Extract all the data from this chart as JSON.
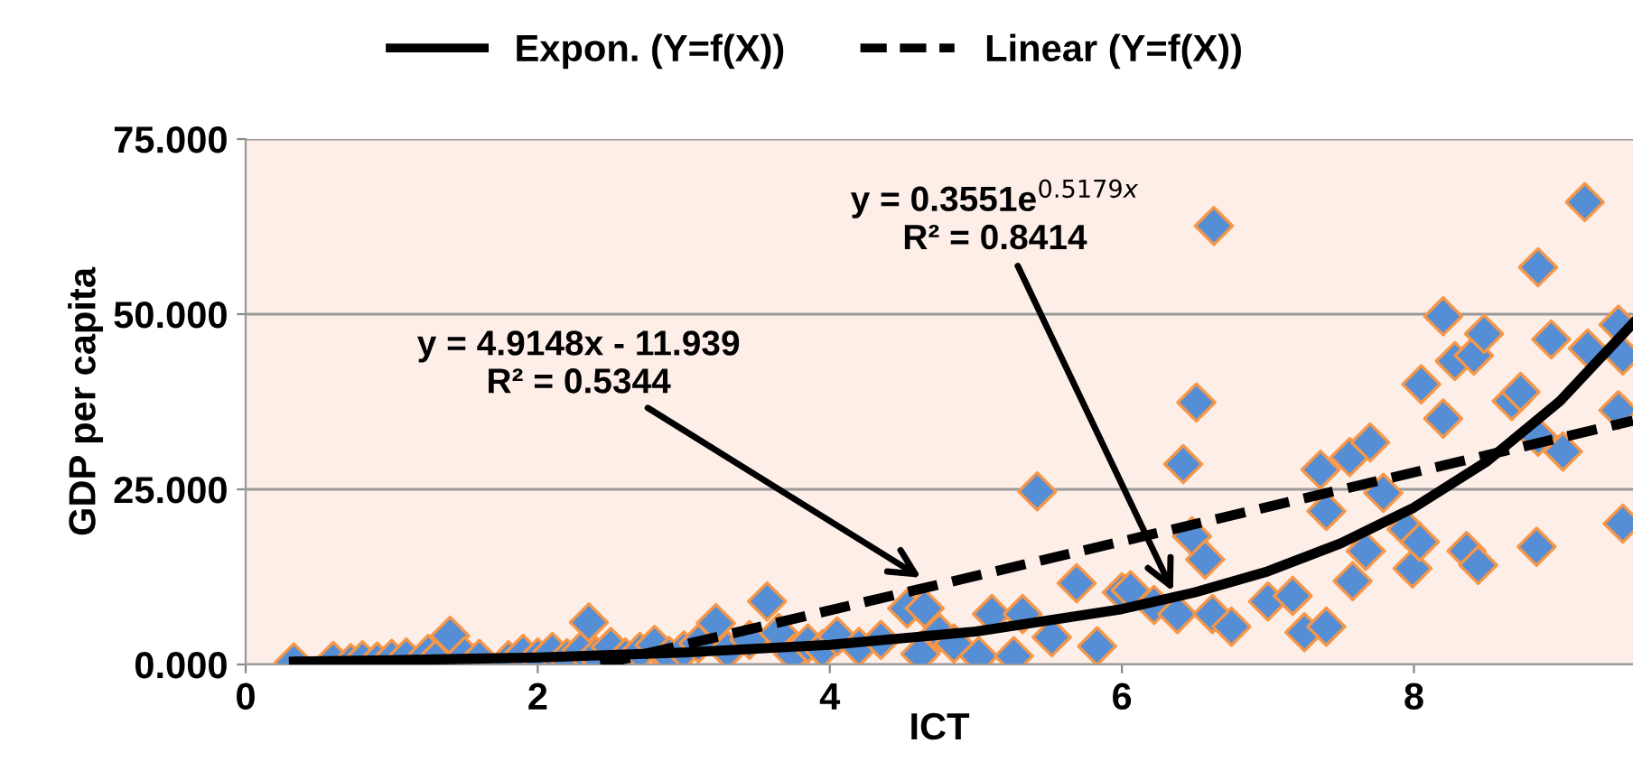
{
  "chart_data": {
    "type": "scatter",
    "xlabel": "ICT",
    "ylabel": "GDP per capita",
    "xlim": [
      0,
      9.5
    ],
    "ylim": [
      0,
      75
    ],
    "xticks": [
      0,
      2,
      4,
      6,
      8
    ],
    "yticks": [
      {
        "value": 0,
        "label": "0.000"
      },
      {
        "value": 25,
        "label": "25.000"
      },
      {
        "value": 50,
        "label": "50.000"
      },
      {
        "value": 75,
        "label": "75.000"
      }
    ],
    "grid": "y",
    "legend": "top",
    "marker": "diamond",
    "annotations": [
      "y = 4.9148x - 11.939\nR² = 0.5344",
      "y = 0.3551e$^{0.5179x}$\nR² = 0.8414"
    ],
    "series": [
      {
        "color": "#558ed5",
        "x": [
          0.33,
          0.6,
          0.72,
          0.8,
          0.9,
          1.0,
          1.1,
          1.25,
          1.3,
          1.4,
          1.5,
          1.6,
          1.8,
          1.9,
          2.0,
          2.1,
          2.2,
          2.3,
          2.35,
          2.4,
          2.5,
          2.6,
          2.7,
          2.8,
          2.9,
          3.0,
          3.1,
          3.22,
          3.3,
          3.45,
          3.57,
          3.65,
          3.75,
          3.85,
          3.95,
          4.05,
          4.2,
          4.35,
          4.53,
          4.62,
          4.65,
          4.75,
          4.85,
          5.02,
          5.11,
          5.26,
          5.32,
          5.42,
          5.52,
          5.69,
          5.83,
          6.0,
          6.06,
          6.22,
          6.38,
          6.42,
          6.48,
          6.51,
          6.57,
          6.62,
          6.63,
          6.75,
          7.0,
          7.17,
          7.25,
          7.36,
          7.4,
          7.4,
          7.56,
          7.58,
          7.67,
          7.7,
          7.79,
          7.95,
          7.99,
          8.04,
          8.05,
          8.2,
          8.2,
          8.28,
          8.36,
          8.41,
          8.44,
          8.48,
          8.67,
          8.73,
          8.84,
          8.85,
          8.85,
          8.94,
          9.02,
          9.17,
          9.19,
          9.4,
          9.4,
          9.43,
          9.43
        ],
        "values": [
          0.3,
          0.5,
          0.2,
          0.6,
          0.4,
          0.8,
          1.0,
          1.5,
          0.7,
          4.1,
          1.2,
          0.8,
          0.6,
          1.5,
          1.0,
          1.8,
          0.9,
          2.0,
          6.0,
          1.2,
          2.5,
          1.0,
          1.8,
          2.8,
          1.2,
          2.0,
          3.0,
          5.9,
          2.0,
          3.5,
          9.0,
          4.5,
          1.5,
          3.0,
          2.2,
          4.0,
          2.5,
          3.5,
          8.0,
          1.5,
          8.0,
          4.5,
          3.0,
          1.2,
          7.2,
          1.2,
          7.2,
          24.7,
          3.9,
          11.6,
          2.6,
          10.3,
          10.6,
          8.5,
          7.2,
          28.6,
          18.3,
          37.4,
          15.0,
          7.2,
          62.6,
          5.4,
          9.0,
          9.8,
          4.6,
          27.8,
          21.9,
          5.4,
          29.6,
          11.9,
          16.2,
          31.7,
          24.5,
          19.3,
          13.7,
          17.5,
          40.0,
          35.1,
          49.7,
          43.3,
          16.2,
          44.1,
          14.2,
          47.2,
          37.6,
          38.9,
          16.8,
          56.7,
          32.5,
          46.4,
          30.4,
          66.0,
          45.1,
          48.5,
          36.3,
          44.1,
          20.1
        ]
      },
      {
        "type": "line",
        "name": "Expon. (Y=f(X))",
        "color": "#000000",
        "line_style": "solid",
        "marker": "none",
        "x": [
          0.33,
          1,
          2,
          3,
          4,
          5,
          6,
          6.5,
          7,
          7.5,
          8,
          8.5,
          9,
          9.5
        ],
        "values": [
          0.4,
          0.6,
          1.0,
          1.7,
          2.8,
          4.7,
          7.9,
          10.3,
          13.3,
          17.3,
          22.4,
          29.0,
          37.6,
          48.7
        ]
      },
      {
        "type": "line",
        "name": "Linear (Y=f(X))",
        "color": "#000000",
        "line_style": "dashed",
        "marker": "none",
        "x": [
          2.43,
          9.5
        ],
        "values": [
          0.0,
          34.8
        ]
      }
    ]
  }
}
